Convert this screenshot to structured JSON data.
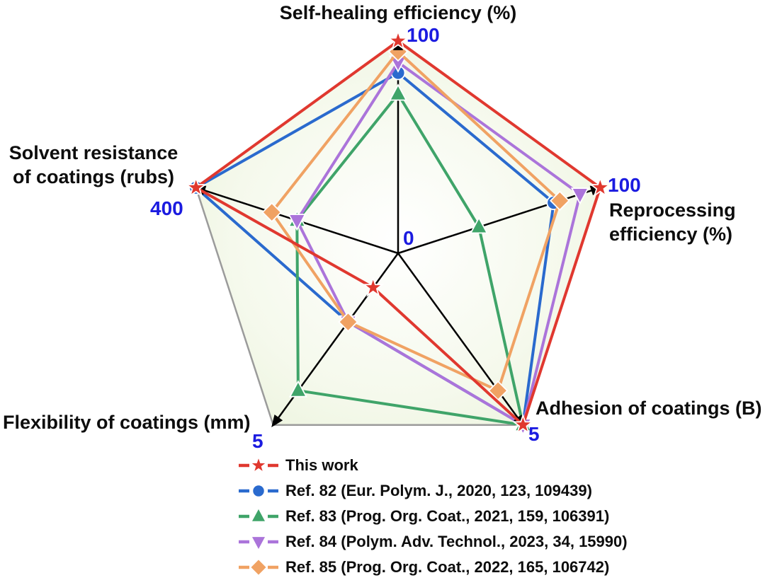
{
  "chart_data": {
    "type": "radar",
    "shape": "pentagon",
    "center_label": "0",
    "grid": false,
    "legend_position": "bottom",
    "pentagon_fill_colors": [
      "#ffffff",
      "#e7f1d5"
    ],
    "pentagon_border_color": "#9b9b9b",
    "axis_color": "#000000",
    "number_label_color": "#1b1be0",
    "axes": [
      {
        "label": "Self-healing efficiency (%)",
        "max": 100
      },
      {
        "label": "Reprocessing efficiency (%)",
        "max": 100
      },
      {
        "label": "Adhesion of coatings (B)",
        "max": 5
      },
      {
        "label": "Flexibility of coatings (mm)",
        "max": 5
      },
      {
        "label": "Solvent resistance of coatings (rubs)",
        "max": 400
      }
    ],
    "series": [
      {
        "name": "This work",
        "color": "#e0382f",
        "marker": "star",
        "values": [
          100,
          100,
          5,
          1,
          400
        ]
      },
      {
        "name": "Ref. 82 (Eur. Polym. J., 2020, 123, 109439)",
        "color": "#2a6ace",
        "marker": "circle",
        "values": [
          85,
          77,
          5,
          2,
          400
        ]
      },
      {
        "name": "Ref. 83 (Prog. Org. Coat., 2021, 159, 106391)",
        "color": "#3fa469",
        "marker": "triangle-up",
        "values": [
          75,
          40,
          5,
          4,
          200
        ]
      },
      {
        "name": "Ref. 84 (Polym. Adv. Technol., 2023, 34, 15990)",
        "color": "#ab74da",
        "marker": "triangle-down",
        "values": [
          90,
          90,
          5,
          2,
          200
        ]
      },
      {
        "name": "Ref. 85 (Prog. Org. Coat., 2022, 165, 106742)",
        "color": "#f0a263",
        "marker": "diamond",
        "values": [
          95,
          80,
          4,
          2,
          250
        ]
      }
    ]
  }
}
